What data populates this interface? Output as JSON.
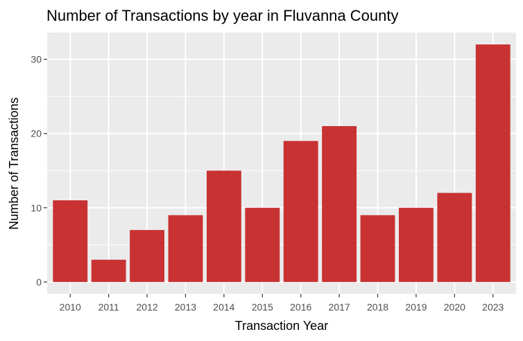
{
  "colors": {
    "bar": "#c83232",
    "panel": "#ebebeb",
    "grid_major": "#ffffff",
    "tick": "#333333",
    "tick_label": "#4d4d4d"
  },
  "chart_data": {
    "type": "bar",
    "title": "Number of Transactions by year in Fluvanna County",
    "xlabel": "Transaction Year",
    "ylabel": "Number of Transactions",
    "categories": [
      "2010",
      "2011",
      "2012",
      "2013",
      "2014",
      "2015",
      "2016",
      "2017",
      "2018",
      "2019",
      "2020",
      "2023"
    ],
    "values": [
      11,
      3,
      7,
      9,
      15,
      10,
      19,
      21,
      9,
      10,
      12,
      32
    ],
    "ylim": [
      -1.6,
      33.6
    ],
    "yticks": [
      0,
      10,
      20,
      30
    ],
    "ytick_labels": [
      "0",
      "10",
      "20",
      "30"
    ],
    "grid": true,
    "legend": "none"
  }
}
